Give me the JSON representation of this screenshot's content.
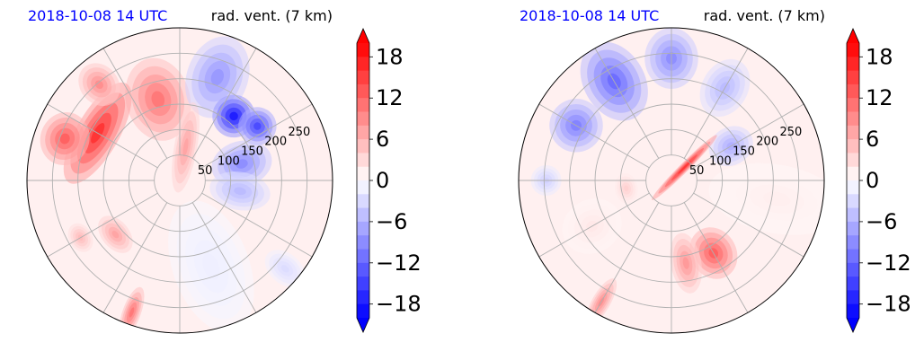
{
  "chart_data": [
    {
      "type": "heatmap",
      "projection": "polar",
      "title_left": "2018-10-08 14 UTC",
      "title_right": "rad. vent. (7 km)",
      "radial_ticks": [
        50,
        100,
        150,
        200,
        250
      ],
      "azimuth_gridlines_deg": [
        0,
        30,
        60,
        90,
        120,
        150,
        180,
        210,
        240,
        270,
        300,
        330
      ],
      "colorbar": {
        "ticks": [
          "18",
          "12",
          "6",
          "0",
          "−6",
          "−12",
          "−18"
        ],
        "tick_values": [
          18,
          12,
          6,
          0,
          -6,
          -12,
          -18
        ],
        "range": [
          -20,
          20
        ],
        "extend": "both",
        "colormap": "bwr"
      },
      "features": [
        {
          "az": 345,
          "r": 0.55,
          "ar": 0.42,
          "at": 0.55,
          "v": 12
        },
        {
          "az": 300,
          "r": 0.62,
          "ar": 0.75,
          "at": 0.28,
          "v": 18
        },
        {
          "az": 290,
          "r": 0.8,
          "ar": 0.35,
          "at": 0.32,
          "v": 14
        },
        {
          "az": 320,
          "r": 0.82,
          "ar": 0.25,
          "at": 0.3,
          "v": 10
        },
        {
          "az": 20,
          "r": 0.72,
          "ar": 0.4,
          "at": 0.55,
          "v": -9
        },
        {
          "az": 40,
          "r": 0.55,
          "ar": 0.28,
          "at": 0.28,
          "v": -20
        },
        {
          "az": 55,
          "r": 0.62,
          "ar": 0.25,
          "at": 0.25,
          "v": -16
        },
        {
          "az": 75,
          "r": 0.42,
          "ar": 0.3,
          "at": 0.4,
          "v": -10
        },
        {
          "az": 100,
          "r": 0.4,
          "ar": 0.25,
          "at": 0.4,
          "v": -6
        },
        {
          "az": 10,
          "r": 0.22,
          "ar": 0.15,
          "at": 0.6,
          "v": 8
        },
        {
          "az": 200,
          "r": 0.92,
          "ar": 0.12,
          "at": 0.35,
          "v": 12
        },
        {
          "az": 230,
          "r": 0.55,
          "ar": 0.28,
          "at": 0.18,
          "v": 8
        },
        {
          "az": 240,
          "r": 0.75,
          "ar": 0.2,
          "at": 0.15,
          "v": 6
        },
        {
          "az": 160,
          "r": 0.6,
          "ar": 0.5,
          "at": 0.9,
          "v": -1.5
        },
        {
          "az": 130,
          "r": 0.9,
          "ar": 0.2,
          "at": 0.3,
          "v": -3
        }
      ]
    },
    {
      "type": "heatmap",
      "projection": "polar",
      "title_left": "2018-10-08 14 UTC",
      "title_right": "rad. vent. (7 km)",
      "radial_ticks": [
        50,
        100,
        150,
        200,
        250
      ],
      "azimuth_gridlines_deg": [
        0,
        30,
        60,
        90,
        120,
        150,
        180,
        210,
        240,
        270,
        300,
        330
      ],
      "colorbar": {
        "ticks": [
          "18",
          "12",
          "6",
          "0",
          "−6",
          "−12",
          "−18"
        ],
        "tick_values": [
          18,
          12,
          6,
          0,
          -6,
          -12,
          -18
        ],
        "range": [
          -20,
          20
        ],
        "extend": "both",
        "colormap": "bwr"
      },
      "features": [
        {
          "az": 330,
          "r": 0.75,
          "ar": 0.4,
          "at": 0.55,
          "v": -13
        },
        {
          "az": 300,
          "r": 0.72,
          "ar": 0.35,
          "at": 0.35,
          "v": -11
        },
        {
          "az": 0,
          "r": 0.8,
          "ar": 0.35,
          "at": 0.4,
          "v": -10
        },
        {
          "az": 30,
          "r": 0.7,
          "ar": 0.3,
          "at": 0.4,
          "v": -6
        },
        {
          "az": 60,
          "r": 0.45,
          "ar": 0.25,
          "at": 0.3,
          "v": -7
        },
        {
          "az": 270,
          "r": 0.82,
          "ar": 0.2,
          "at": 0.2,
          "v": -4
        },
        {
          "az": 45,
          "r": 0.12,
          "ar": 0.06,
          "at": 0.6,
          "v": 18
        },
        {
          "az": 150,
          "r": 0.55,
          "ar": 0.3,
          "at": 0.35,
          "v": 14
        },
        {
          "az": 170,
          "r": 0.55,
          "ar": 0.2,
          "at": 0.4,
          "v": 9
        },
        {
          "az": 210,
          "r": 0.92,
          "ar": 0.12,
          "at": 0.35,
          "v": 10
        },
        {
          "az": 260,
          "r": 0.3,
          "ar": 0.2,
          "at": 0.15,
          "v": 4
        },
        {
          "az": 100,
          "r": 0.7,
          "ar": 0.45,
          "at": 0.9,
          "v": 1.5
        },
        {
          "az": 240,
          "r": 0.6,
          "ar": 0.35,
          "at": 0.4,
          "v": 2
        }
      ]
    }
  ]
}
